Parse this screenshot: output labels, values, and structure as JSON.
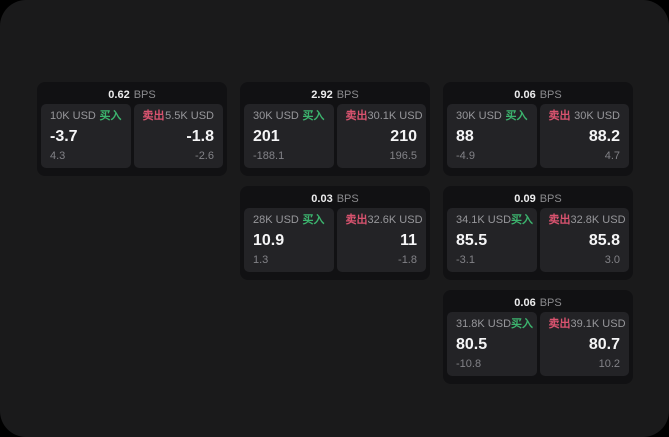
{
  "labels": {
    "bps_unit": "BPS",
    "buy": "买入",
    "sell": "卖出"
  },
  "colors": {
    "page_bg": "#000000",
    "panel_bg": "#1a1a1b",
    "card_bg": "#111113",
    "tile_bg": "#232326",
    "buy_green": "#3cb46e",
    "sell_red": "#d9536f",
    "value_white": "#f5f5f6",
    "muted_gray": "#8b8b8e"
  },
  "cards": [
    {
      "bps": "0.62",
      "buy": {
        "amount": "10K USD",
        "value": "-3.7",
        "sub": "4.3"
      },
      "sell": {
        "amount": "5.5K USD",
        "value": "-1.8",
        "sub": "-2.6"
      }
    },
    {
      "bps": "2.92",
      "buy": {
        "amount": "30K USD",
        "value": "201",
        "sub": "-188.1"
      },
      "sell": {
        "amount": "30.1K USD",
        "value": "210",
        "sub": "196.5"
      }
    },
    {
      "bps": "0.06",
      "buy": {
        "amount": "30K USD",
        "value": "88",
        "sub": "-4.9"
      },
      "sell": {
        "amount": "30K USD",
        "value": "88.2",
        "sub": "4.7"
      }
    },
    {
      "bps": "0.03",
      "buy": {
        "amount": "28K USD",
        "value": "10.9",
        "sub": "1.3"
      },
      "sell": {
        "amount": "32.6K USD",
        "value": "11",
        "sub": "-1.8"
      }
    },
    {
      "bps": "0.09",
      "buy": {
        "amount": "34.1K USD",
        "value": "85.5",
        "sub": "-3.1"
      },
      "sell": {
        "amount": "32.8K USD",
        "value": "85.8",
        "sub": "3.0"
      }
    },
    {
      "bps": "0.06",
      "buy": {
        "amount": "31.8K USD",
        "value": "80.5",
        "sub": "-10.8"
      },
      "sell": {
        "amount": "39.1K USD",
        "value": "80.7",
        "sub": "10.2"
      }
    }
  ]
}
